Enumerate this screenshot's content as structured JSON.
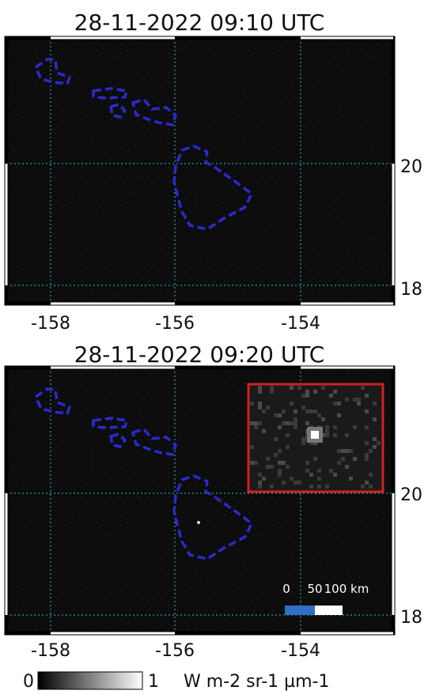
{
  "panels": [
    {
      "title": "28-11-2022 09:10 UTC",
      "lat_labels": [
        "20",
        "18"
      ],
      "lon_labels": [
        "-158",
        "-156",
        "-154"
      ]
    },
    {
      "title": "28-11-2022 09:20 UTC",
      "lat_labels": [
        "20",
        "18"
      ],
      "lon_labels": [
        "-158",
        "-156",
        "-154"
      ],
      "scale_bar": {
        "labels": [
          "0",
          "50",
          "100 km"
        ]
      }
    }
  ],
  "colorbar": {
    "min_label": "0",
    "max_label": "1",
    "unit": "W m-2 sr-1 µm-1"
  }
}
